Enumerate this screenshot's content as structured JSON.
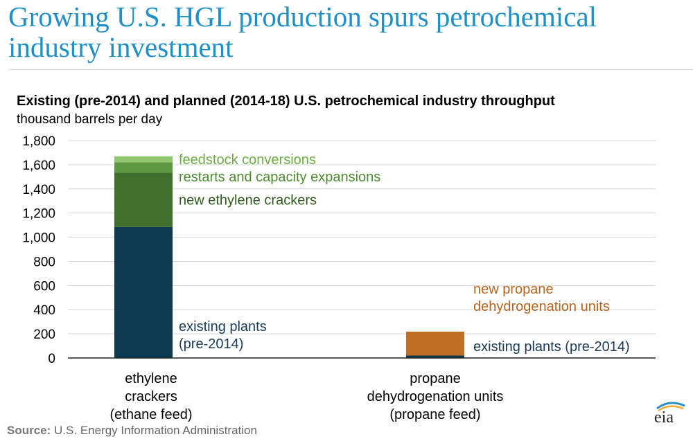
{
  "page": {
    "title": "Growing U.S. HGL production spurs petrochemical industry investment",
    "source_label": "Source:",
    "source_text": "U.S. Energy Information Administration",
    "logo_text": "eia"
  },
  "chart_data": {
    "type": "bar",
    "stacked": true,
    "title": "Existing (pre-2014) and planned (2014-18) U.S. petrochemical industry throughput",
    "ylabel": "thousand barrels per day",
    "ylim": [
      0,
      1800
    ],
    "yticks": [
      0,
      200,
      400,
      600,
      800,
      1000,
      1200,
      1400,
      1600,
      1800
    ],
    "ytick_labels": [
      "0",
      "200",
      "400",
      "600",
      "800",
      "1,000",
      "1,200",
      "1,400",
      "1,600",
      "1,800"
    ],
    "grid": true,
    "legend": "none",
    "categories": [
      [
        "ethylene",
        "crackers",
        "(ethane feed)"
      ],
      [
        "propane",
        "dehydrogenation units",
        "(propane feed)"
      ]
    ],
    "bars": [
      {
        "segments": [
          {
            "label": [
              "existing plants",
              "(pre-2014)"
            ],
            "value": 1085,
            "color": "#0b3950",
            "label_color": "#1b3a57"
          },
          {
            "label": [
              "new ethylene crackers"
            ],
            "value": 450,
            "color": "#416f2c",
            "label_color": "#2f5a1d"
          },
          {
            "label": [
              "restarts and capacity expansions"
            ],
            "value": 85,
            "color": "#5e9840",
            "label_color": "#4e8a32"
          },
          {
            "label": [
              "feedstock conversions"
            ],
            "value": 50,
            "color": "#91c76f",
            "label_color": "#6cab44"
          }
        ]
      },
      {
        "segments": [
          {
            "label": [
              "existing plants (pre-2014)"
            ],
            "value": 20,
            "color": "#0b3950",
            "label_color": "#1b3a57"
          },
          {
            "label": [
              "new propane",
              "dehydrogenation  units"
            ],
            "value": 198,
            "color": "#c06e26",
            "label_color": "#b5651d"
          }
        ]
      }
    ]
  }
}
